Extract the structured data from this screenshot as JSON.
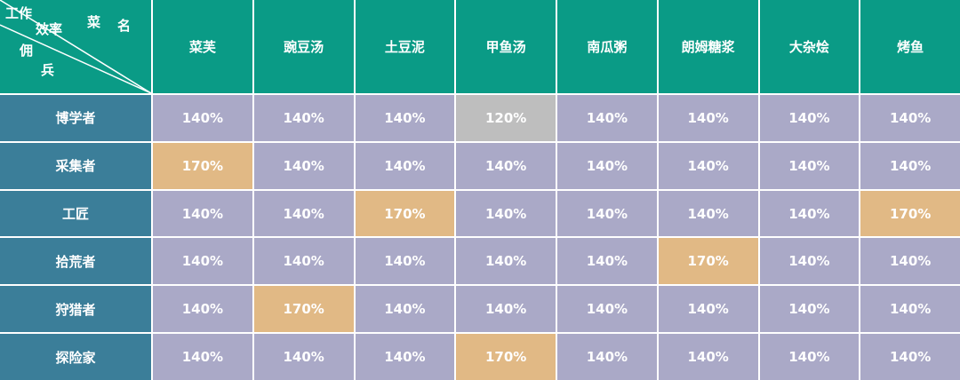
{
  "corner": {
    "top_left": "工作",
    "top_mid": "效率",
    "dish_1": "菜",
    "dish_2": "名",
    "merc_1": "佣",
    "merc_2": "兵"
  },
  "columns": [
    "菜芙",
    "豌豆汤",
    "土豆泥",
    "甲鱼汤",
    "南瓜粥",
    "朗姆糖浆",
    "大杂烩",
    "烤鱼"
  ],
  "rows": [
    {
      "name": "博学者",
      "cells": [
        "140%",
        "140%",
        "140%",
        "120%",
        "140%",
        "140%",
        "140%",
        "140%"
      ]
    },
    {
      "name": "采集者",
      "cells": [
        "170%",
        "140%",
        "140%",
        "140%",
        "140%",
        "140%",
        "140%",
        "140%"
      ]
    },
    {
      "name": "工匠",
      "cells": [
        "140%",
        "140%",
        "170%",
        "140%",
        "140%",
        "140%",
        "140%",
        "170%"
      ]
    },
    {
      "name": "拾荒者",
      "cells": [
        "140%",
        "140%",
        "140%",
        "140%",
        "140%",
        "170%",
        "140%",
        "140%"
      ]
    },
    {
      "name": "狩猎者",
      "cells": [
        "140%",
        "170%",
        "140%",
        "140%",
        "140%",
        "140%",
        "140%",
        "140%"
      ]
    },
    {
      "name": "探险家",
      "cells": [
        "140%",
        "140%",
        "140%",
        "170%",
        "140%",
        "140%",
        "140%",
        "140%"
      ]
    }
  ],
  "palette": {
    "header": "#0a9b86",
    "row_header": "#3b7e99",
    "default": "#aaa9c7",
    "up": "#e1b985",
    "down": "#bebebe"
  }
}
